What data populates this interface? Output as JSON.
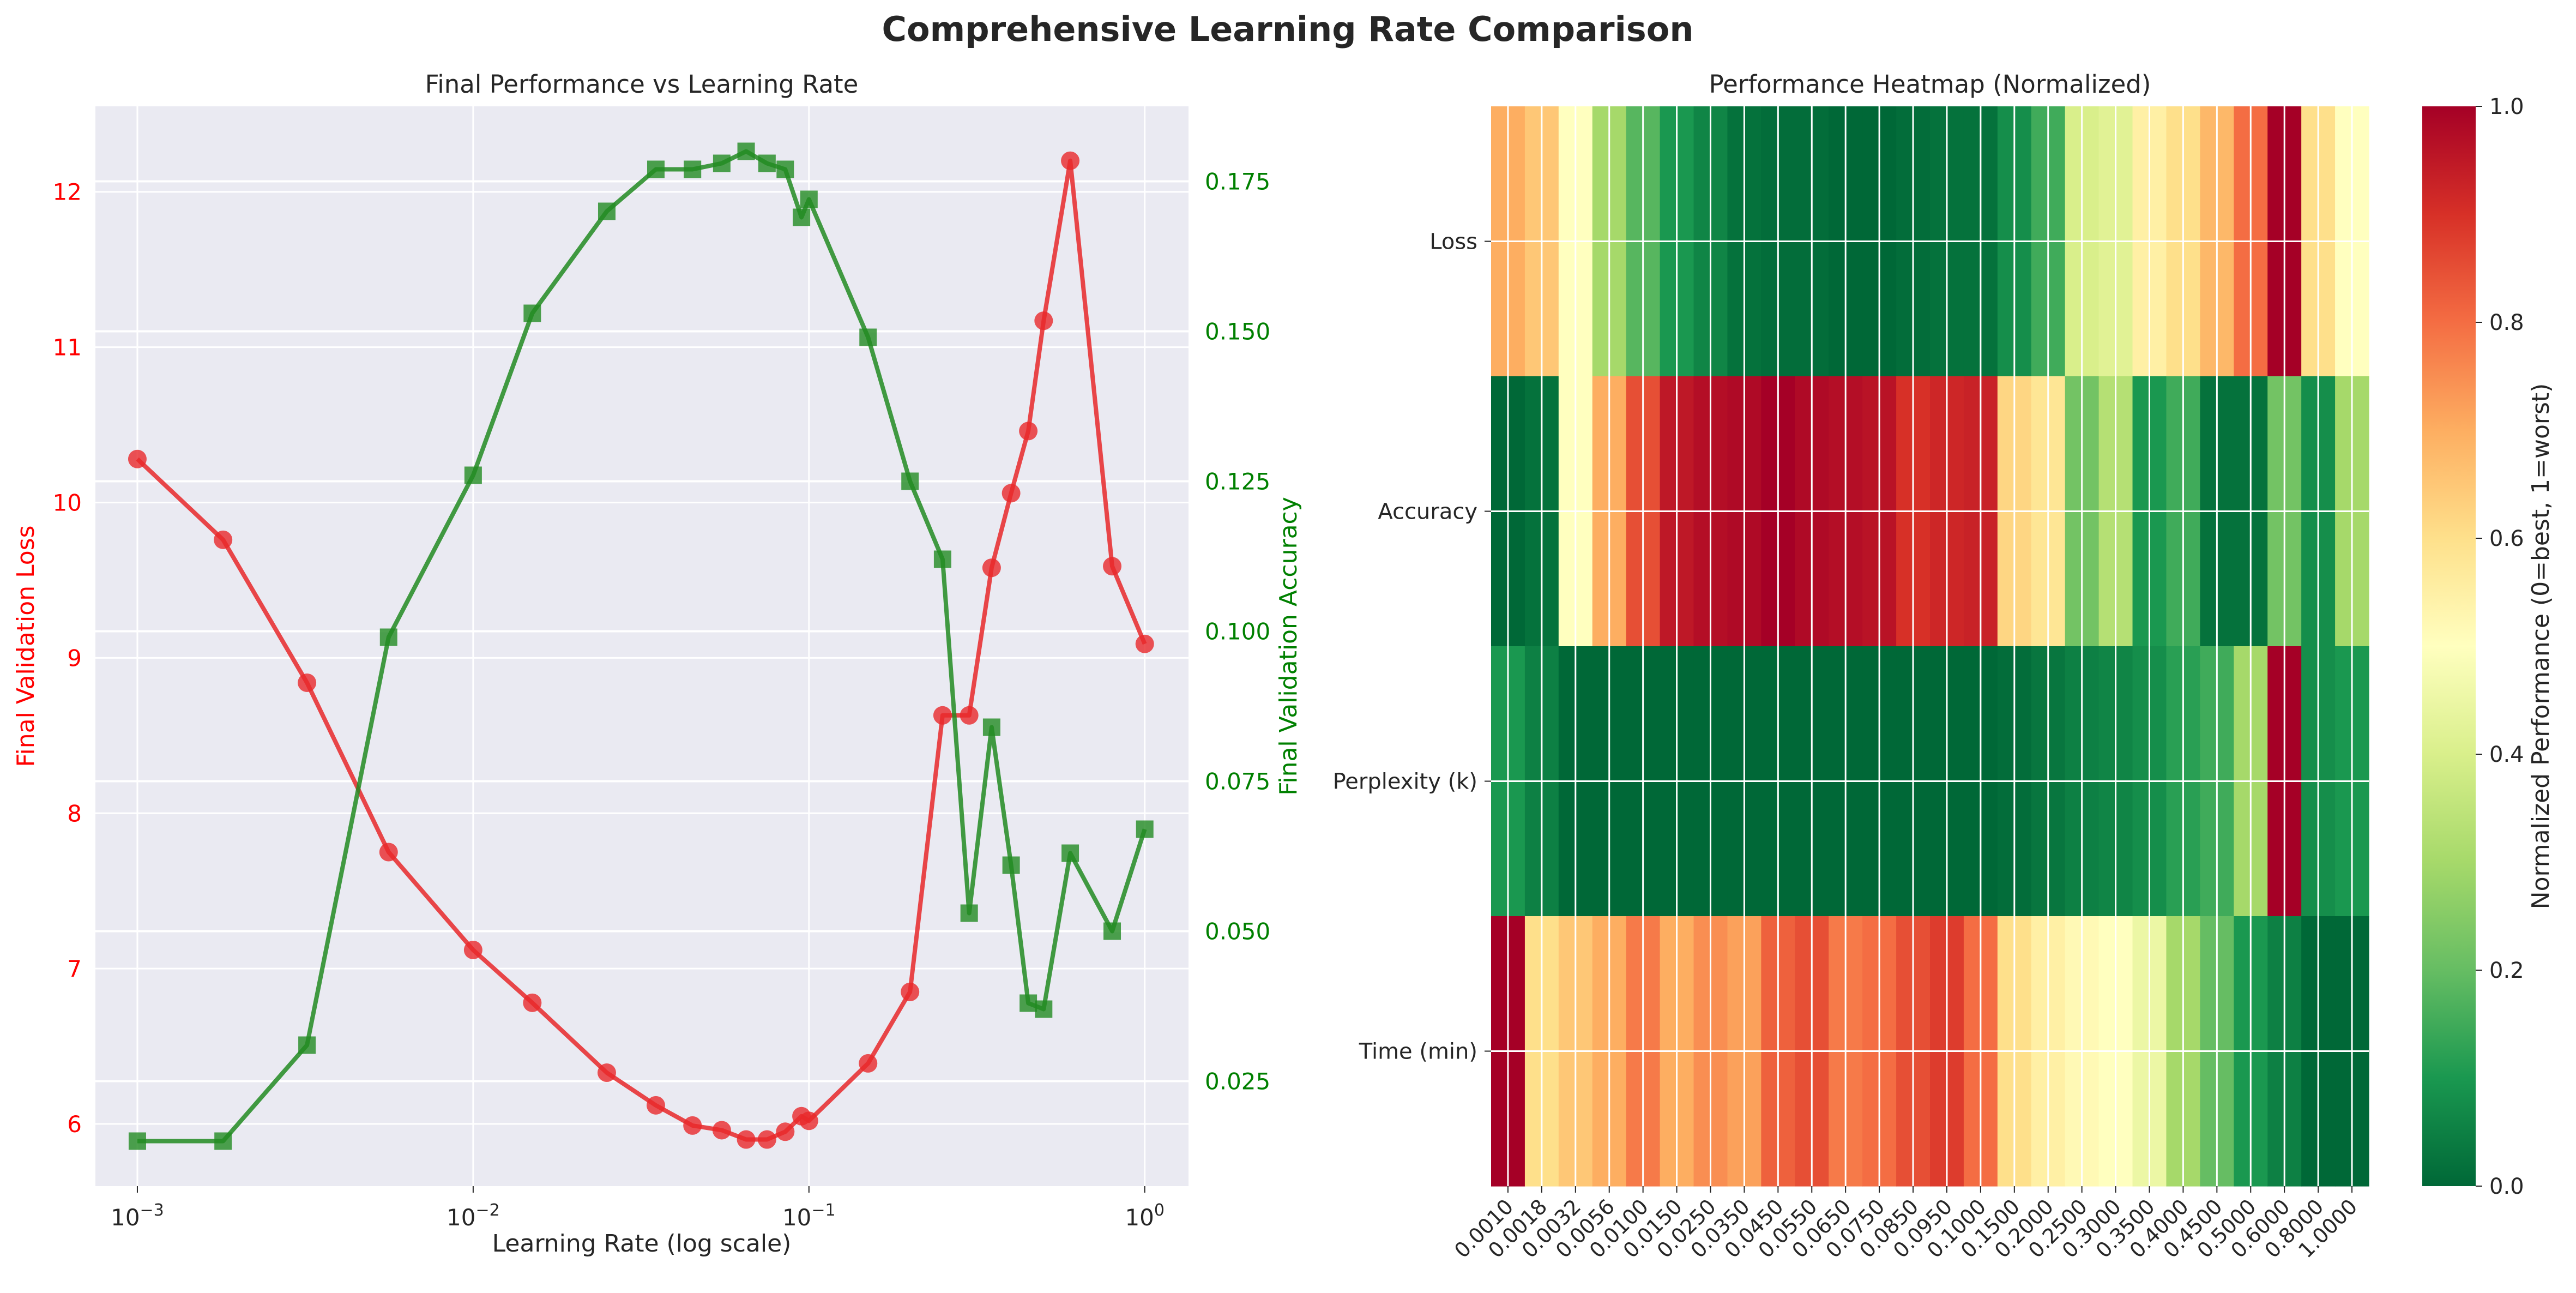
{
  "figure": {
    "suptitle": "Comprehensive Learning Rate Comparison",
    "colors": {
      "loss": "#e8282a",
      "accuracy": "#228b22",
      "loss_axis_text": "#ff0000",
      "accuracy_axis_text": "#008000",
      "panel_bg": "#eaeaf2",
      "text": "#262626"
    }
  },
  "chart_data": [
    {
      "type": "line",
      "title": "Final Performance vs Learning Rate",
      "xlabel": "Learning Rate (log scale)",
      "xscale": "log",
      "xlim": [
        0.00075,
        1.35
      ],
      "x_ticks": [
        0.001,
        0.01,
        0.1,
        1
      ],
      "x_tick_labels": [
        {
          "base": "10",
          "exp": "−3"
        },
        {
          "base": "10",
          "exp": "−2"
        },
        {
          "base": "10",
          "exp": "−1"
        },
        {
          "base": "10",
          "exp": "0"
        }
      ],
      "grid": true,
      "y_left": {
        "label": "Final Validation Loss",
        "lim": [
          5.6,
          12.55
        ],
        "ticks": [
          6,
          7,
          8,
          9,
          10,
          11,
          12
        ],
        "tick_labels": [
          "6",
          "7",
          "8",
          "9",
          "10",
          "11",
          "12"
        ]
      },
      "y_right": {
        "label": "Final Validation Accuracy",
        "lim": [
          0.0075,
          0.1875
        ],
        "ticks": [
          0.025,
          0.05,
          0.075,
          0.1,
          0.125,
          0.15,
          0.175
        ],
        "tick_labels": [
          "0.025",
          "0.050",
          "0.075",
          "0.100",
          "0.125",
          "0.150",
          "0.175"
        ]
      },
      "series": [
        {
          "axis": "left",
          "marker": "circle",
          "x": [
            0.001,
            0.0018,
            0.0032,
            0.0056,
            0.01,
            0.015,
            0.025,
            0.035,
            0.045,
            0.055,
            0.065,
            0.075,
            0.085,
            0.095,
            0.1,
            0.15,
            0.2,
            0.25,
            0.3,
            0.35,
            0.4,
            0.45,
            0.5,
            0.6,
            0.8,
            1.0
          ],
          "values": [
            10.28,
            9.76,
            8.84,
            7.75,
            7.12,
            6.78,
            6.33,
            6.12,
            5.99,
            5.96,
            5.9,
            5.9,
            5.95,
            6.05,
            6.02,
            6.39,
            6.85,
            8.63,
            8.63,
            9.58,
            10.06,
            10.46,
            11.17,
            12.2,
            9.59,
            9.09
          ]
        },
        {
          "axis": "right",
          "marker": "square",
          "x": [
            0.001,
            0.0018,
            0.0032,
            0.0056,
            0.01,
            0.015,
            0.025,
            0.035,
            0.045,
            0.055,
            0.065,
            0.075,
            0.085,
            0.095,
            0.1,
            0.15,
            0.2,
            0.25,
            0.3,
            0.35,
            0.4,
            0.45,
            0.5,
            0.6,
            0.8,
            1.0
          ],
          "values": [
            0.015,
            0.015,
            0.031,
            0.099,
            0.126,
            0.153,
            0.17,
            0.177,
            0.177,
            0.178,
            0.18,
            0.178,
            0.177,
            0.169,
            0.172,
            0.149,
            0.125,
            0.112,
            0.053,
            0.084,
            0.061,
            0.038,
            0.037,
            0.063,
            0.05,
            0.067
          ]
        }
      ]
    },
    {
      "type": "heatmap",
      "title": "Performance Heatmap (Normalized)",
      "rows": [
        "Loss",
        "Accuracy",
        "Perplexity (k)",
        "Time (min)"
      ],
      "columns": [
        "0.0010",
        "0.0018",
        "0.0032",
        "0.0056",
        "0.0100",
        "0.0150",
        "0.0250",
        "0.0350",
        "0.0450",
        "0.0550",
        "0.0650",
        "0.0750",
        "0.0850",
        "0.0950",
        "0.1000",
        "0.1500",
        "0.2000",
        "0.2500",
        "0.3000",
        "0.3500",
        "0.4000",
        "0.4500",
        "0.5000",
        "0.6000",
        "0.8000",
        "1.0000"
      ],
      "values": [
        [
          0.7,
          0.65,
          0.5,
          0.3,
          0.18,
          0.1,
          0.06,
          0.02,
          0.01,
          0.01,
          0.0,
          0.0,
          0.01,
          0.02,
          0.02,
          0.08,
          0.15,
          0.4,
          0.42,
          0.55,
          0.6,
          0.68,
          0.8,
          1.0,
          0.6,
          0.5
        ],
        [
          0.0,
          0.02,
          0.5,
          0.7,
          0.85,
          0.95,
          0.97,
          0.98,
          1.0,
          0.98,
          0.97,
          0.96,
          0.9,
          0.92,
          0.93,
          0.62,
          0.58,
          0.22,
          0.33,
          0.1,
          0.15,
          0.02,
          0.02,
          0.22,
          0.08,
          0.3
        ],
        [
          0.1,
          0.05,
          0.0,
          0.0,
          0.0,
          0.0,
          0.0,
          0.0,
          0.0,
          0.0,
          0.0,
          0.0,
          0.0,
          0.0,
          0.0,
          0.01,
          0.03,
          0.05,
          0.06,
          0.08,
          0.12,
          0.15,
          0.3,
          1.0,
          0.08,
          0.1
        ],
        [
          1.0,
          0.6,
          0.65,
          0.7,
          0.78,
          0.7,
          0.75,
          0.72,
          0.82,
          0.85,
          0.78,
          0.8,
          0.85,
          0.88,
          0.8,
          0.6,
          0.55,
          0.52,
          0.5,
          0.45,
          0.3,
          0.2,
          0.1,
          0.05,
          0.0,
          0.0
        ]
      ],
      "colormap": "RdYlGn_r",
      "colorbar": {
        "label": "Normalized Performance (0=best, 1=worst)",
        "lim": [
          0,
          1
        ],
        "ticks": [
          0.0,
          0.2,
          0.4,
          0.6,
          0.8,
          1.0
        ],
        "tick_labels": [
          "0.0",
          "0.2",
          "0.4",
          "0.6",
          "0.8",
          "1.0"
        ]
      }
    }
  ]
}
